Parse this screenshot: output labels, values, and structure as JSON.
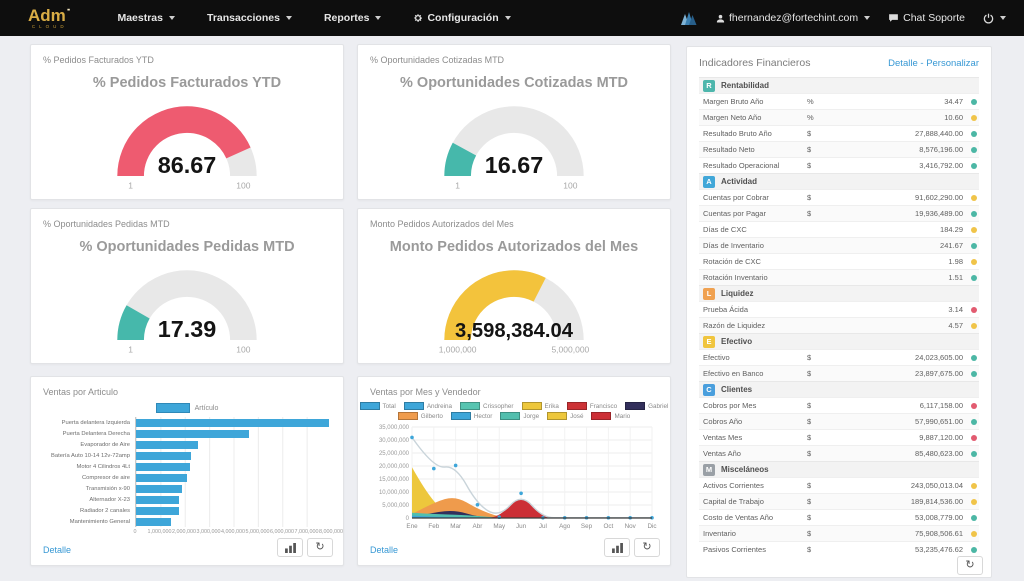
{
  "navbar": {
    "logo": {
      "text": "Adm",
      "sub": "CLOUD"
    },
    "items": [
      {
        "label": "Maestras"
      },
      {
        "label": "Transacciones"
      },
      {
        "label": "Reportes"
      },
      {
        "label": "Configuración",
        "icon": "gear"
      }
    ],
    "right": {
      "user_email": "fhernandez@fortechint.com",
      "chat_label": "Chat Soporte"
    }
  },
  "gauges": [
    {
      "header": "% Pedidos Facturados YTD",
      "title": "% Pedidos Facturados YTD",
      "value": "86.67",
      "min_label": "1",
      "max_label": "100",
      "fraction": 0.865,
      "color": "#ee5b70"
    },
    {
      "header": "% Oportunidades Cotizadas MTD",
      "title": "% Oportunidades Cotizadas MTD",
      "value": "16.67",
      "min_label": "1",
      "max_label": "100",
      "fraction": 0.158,
      "color": "#46b8ab"
    },
    {
      "header": "% Oportunidades Pedidas MTD",
      "title": "% Oportunidades Pedidas MTD",
      "value": "17.39",
      "min_label": "1",
      "max_label": "100",
      "fraction": 0.166,
      "color": "#46b8ab"
    },
    {
      "header": "Monto Pedidos Autorizados del Mes",
      "title": "Monto Pedidos Autorizados del Mes",
      "value": "3,598,384.04",
      "min_label": "1,000,000",
      "max_label": "5,000,000",
      "fraction": 0.65,
      "color": "#f3c33c"
    }
  ],
  "bar_card": {
    "header": "Ventas por Articulo",
    "detail_label": "Detalle"
  },
  "line_card": {
    "header": "Ventas por Mes y Vendedor",
    "detail_label": "Detalle"
  },
  "chart_data": [
    {
      "type": "bar",
      "title": "Ventas por Articulo",
      "legend_label": "Artículo",
      "bar_color": "#3ea6d9",
      "categories": [
        "Puerta delantera Izquierda",
        "Puerta Delantera Derecha",
        "Evaporador de Aire",
        "Batería Auto 10-14 12v-72amp",
        "Motor 4 Cilindros 4Lt",
        "Compresor de aire",
        "Transmisión x-90",
        "Alternador X-23",
        "Radiador 2 canales",
        "Mantenimiento General"
      ],
      "values": [
        7900000,
        4650000,
        2550000,
        2250000,
        2200000,
        2100000,
        1900000,
        1750000,
        1750000,
        1450000
      ],
      "xlim": [
        0,
        8000000
      ],
      "xticks": [
        "0",
        "1,000,000",
        "2,000,000",
        "3,000,000",
        "4,000,000",
        "5,000,000",
        "6,000,000",
        "7,000,000",
        "8,000,000"
      ],
      "grid": "vertical"
    },
    {
      "type": "area",
      "title": "Ventas por Mes y Vendedor",
      "categories": [
        "Ene",
        "Feb",
        "Mar",
        "Abr",
        "May",
        "Jun",
        "Jul",
        "Ago",
        "Sep",
        "Oct",
        "Nov",
        "Dic"
      ],
      "ylim": [
        0,
        35000000
      ],
      "yticks": [
        "0",
        "5,000,000",
        "10,000,000",
        "15,000,000",
        "20,000,000",
        "25,000,000",
        "30,000,000",
        "35,000,000"
      ],
      "legend_rows": [
        6,
        5
      ],
      "area_draw_order": [
        "José",
        "Gilberto",
        "Gabriel",
        "Jorge",
        "Hector",
        "Andreina",
        "Crissopher",
        "Erika",
        "Francisco",
        "Mario"
      ],
      "total_line_color": "#c9d4da",
      "total_marker_color": "#3ea6d9",
      "series": [
        {
          "name": "Total",
          "plot": "line",
          "color": "#3ea6d9",
          "values": [
            31000000,
            19000000,
            20200000,
            5100000,
            300000,
            9500000,
            100000,
            100000,
            100000,
            100000,
            100000,
            100000
          ]
        },
        {
          "name": "Andreina",
          "plot": "area",
          "color": "#3ea6d9",
          "values": [
            400000,
            300000,
            200000,
            100000,
            0,
            0,
            0,
            0,
            0,
            0,
            0,
            0
          ]
        },
        {
          "name": "Crissopher",
          "plot": "area",
          "color": "#57c5b1",
          "values": [
            250000,
            150000,
            100000,
            0,
            0,
            0,
            0,
            0,
            0,
            0,
            0,
            0
          ]
        },
        {
          "name": "Erika",
          "plot": "area",
          "color": "#edc73c",
          "values": [
            150000,
            100000,
            0,
            0,
            0,
            0,
            0,
            0,
            0,
            0,
            0,
            0
          ]
        },
        {
          "name": "Francisco",
          "plot": "area",
          "color": "#cc3236",
          "values": [
            100000,
            0,
            0,
            0,
            0,
            0,
            0,
            0,
            0,
            0,
            0,
            0
          ]
        },
        {
          "name": "Gabriel",
          "plot": "area",
          "color": "#322f5b",
          "values": [
            300000,
            2200000,
            3000000,
            500000,
            0,
            0,
            0,
            0,
            0,
            0,
            0,
            0
          ]
        },
        {
          "name": "Gilberto",
          "plot": "area",
          "color": "#ef9b4c",
          "values": [
            1500000,
            6000000,
            8500000,
            3500000,
            300000,
            0,
            0,
            0,
            0,
            0,
            0,
            0
          ]
        },
        {
          "name": "Hector",
          "plot": "area",
          "color": "#3ea6d9",
          "values": [
            900000,
            500000,
            400000,
            300000,
            0,
            0,
            0,
            0,
            0,
            0,
            0,
            0
          ]
        },
        {
          "name": "Jorge",
          "plot": "area",
          "color": "#52bfae",
          "values": [
            2000000,
            1500000,
            1300000,
            800000,
            100000,
            0,
            0,
            0,
            0,
            0,
            0,
            0
          ]
        },
        {
          "name": "José",
          "plot": "area",
          "color": "#edc73c",
          "values": [
            19500000,
            4500000,
            1500000,
            800000,
            0,
            0,
            0,
            0,
            0,
            0,
            0,
            0
          ]
        },
        {
          "name": "Mario",
          "plot": "area",
          "color": "#cc2f36",
          "values": [
            0,
            0,
            0,
            0,
            200000,
            9500000,
            300000,
            0,
            0,
            0,
            0,
            0
          ]
        }
      ]
    }
  ],
  "indicators": {
    "title": "Indicadores Financieros",
    "links": [
      "Detalle",
      "Personalizar"
    ],
    "links_separator": " - ",
    "status_colors": {
      "green": "#4cb7a5",
      "yellow": "#f0c449",
      "red": "#e25b70"
    },
    "sections": [
      {
        "letter": "R",
        "color": "#4db6ac",
        "label": "Rentabilidad",
        "rows": [
          {
            "name": "Margen Bruto Año",
            "unit": "%",
            "value": "34.47",
            "status": "green"
          },
          {
            "name": "Margen Neto Año",
            "unit": "%",
            "value": "10.60",
            "status": "yellow"
          },
          {
            "name": "Resultado Bruto Año",
            "unit": "$",
            "value": "27,888,440.00",
            "status": "green"
          },
          {
            "name": "Resultado Neto",
            "unit": "$",
            "value": "8,576,196.00",
            "status": "green"
          },
          {
            "name": "Resultado Operacional",
            "unit": "$",
            "value": "3,416,792.00",
            "status": "green"
          }
        ]
      },
      {
        "letter": "A",
        "color": "#41a7d8",
        "label": "Actividad",
        "rows": [
          {
            "name": "Cuentas por Cobrar",
            "unit": "$",
            "value": "91,602,290.00",
            "status": "yellow"
          },
          {
            "name": "Cuentas por Pagar",
            "unit": "$",
            "value": "19,936,489.00",
            "status": "green"
          },
          {
            "name": "Días de CXC",
            "unit": "",
            "value": "184.29",
            "status": "yellow"
          },
          {
            "name": "Días de Inventario",
            "unit": "",
            "value": "241.67",
            "status": "green"
          },
          {
            "name": "Rotación de CXC",
            "unit": "",
            "value": "1.98",
            "status": "yellow"
          },
          {
            "name": "Rotación Inventario",
            "unit": "",
            "value": "1.51",
            "status": "green"
          }
        ]
      },
      {
        "letter": "L",
        "color": "#f0a150",
        "label": "Liquidez",
        "rows": [
          {
            "name": "Prueba Ácida",
            "unit": "",
            "value": "3.14",
            "status": "red"
          },
          {
            "name": "Razón de Liquidez",
            "unit": "",
            "value": "4.57",
            "status": "yellow"
          }
        ]
      },
      {
        "letter": "E",
        "color": "#f0c53e",
        "label": "Efectivo",
        "rows": [
          {
            "name": "Efectivo",
            "unit": "$",
            "value": "24,023,605.00",
            "status": "green"
          },
          {
            "name": "Efectivo en Banco",
            "unit": "$",
            "value": "23,897,675.00",
            "status": "green"
          }
        ]
      },
      {
        "letter": "C",
        "color": "#4a9fdd",
        "label": "Clientes",
        "rows": [
          {
            "name": "Cobros por Mes",
            "unit": "$",
            "value": "6,117,158.00",
            "status": "red"
          },
          {
            "name": "Cobros Año",
            "unit": "$",
            "value": "57,990,651.00",
            "status": "green"
          },
          {
            "name": "Ventas Mes",
            "unit": "$",
            "value": "9,887,120.00",
            "status": "red"
          },
          {
            "name": "Ventas Año",
            "unit": "$",
            "value": "85,480,623.00",
            "status": "green"
          }
        ]
      },
      {
        "letter": "M",
        "color": "#9aa0a6",
        "label": "Misceláneos",
        "rows": [
          {
            "name": "Activos Corrientes",
            "unit": "$",
            "value": "243,050,013.04",
            "status": "yellow"
          },
          {
            "name": "Capital de Trabajo",
            "unit": "$",
            "value": "189,814,536.00",
            "status": "yellow"
          },
          {
            "name": "Costo de Ventas Año",
            "unit": "$",
            "value": "53,008,779.00",
            "status": "green"
          },
          {
            "name": "Inventario",
            "unit": "$",
            "value": "75,908,506.61",
            "status": "yellow"
          },
          {
            "name": "Pasivos Corrientes",
            "unit": "$",
            "value": "53,235,476.62",
            "status": "green"
          }
        ]
      }
    ]
  }
}
